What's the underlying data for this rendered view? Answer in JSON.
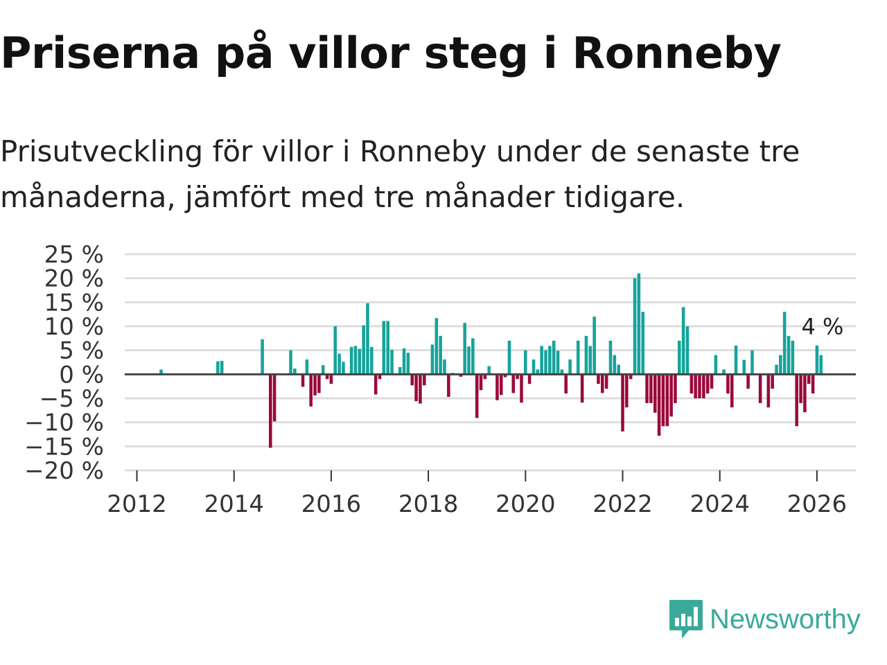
{
  "title": "Priserna på villor steg i Ronneby",
  "subtitle": "Prisutveckling för villor i Ronneby under de senaste tre månaderna, jämfört med tre månader tidigare.",
  "brand": {
    "name": "Newsworthy",
    "color": "#3aa99b",
    "icon": "newsworthy-logo-icon"
  },
  "colors": {
    "positive": "#16a39a",
    "negative": "#9a0a3c",
    "zero_line": "#444444",
    "grid": "#dddddd"
  },
  "chart_data": {
    "type": "bar",
    "title": "Priserna på villor steg i Ronneby",
    "xlabel": "",
    "ylabel": "",
    "ylim": [
      -20,
      25
    ],
    "xlim": [
      2011.75,
      2026.8
    ],
    "y_ticks": [
      25,
      20,
      15,
      10,
      5,
      0,
      -5,
      -10,
      -15,
      -20
    ],
    "y_tick_labels": [
      "25 %",
      "20 %",
      "15 %",
      "10 %",
      "5 %",
      "0 %",
      "−5 %",
      "−10 %",
      "−15 %",
      "−20 %"
    ],
    "x_ticks": [
      2012,
      2014,
      2016,
      2018,
      2020,
      2022,
      2024,
      2026
    ],
    "x_tick_labels": [
      "2012",
      "2014",
      "2016",
      "2018",
      "2020",
      "2022",
      "2024",
      "2026"
    ],
    "grid": true,
    "last_value_label": "4 %",
    "series": [
      {
        "name": "Prisutveckling (%)",
        "x": [
          2012.5,
          2013.667,
          2013.75,
          2014.583,
          2014.75,
          2014.833,
          2015.167,
          2015.25,
          2015.417,
          2015.5,
          2015.583,
          2015.667,
          2015.75,
          2015.833,
          2015.917,
          2016.0,
          2016.083,
          2016.167,
          2016.25,
          2016.417,
          2016.5,
          2016.583,
          2016.667,
          2016.75,
          2016.833,
          2016.917,
          2017.0,
          2017.083,
          2017.167,
          2017.25,
          2017.417,
          2017.5,
          2017.583,
          2017.667,
          2017.75,
          2017.833,
          2017.917,
          2018.083,
          2018.167,
          2018.25,
          2018.333,
          2018.417,
          2018.5,
          2018.667,
          2018.75,
          2018.833,
          2018.917,
          2019.0,
          2019.083,
          2019.167,
          2019.25,
          2019.417,
          2019.5,
          2019.583,
          2019.667,
          2019.75,
          2019.833,
          2019.917,
          2020.0,
          2020.083,
          2020.167,
          2020.25,
          2020.333,
          2020.417,
          2020.5,
          2020.583,
          2020.667,
          2020.75,
          2020.833,
          2020.917,
          2021.083,
          2021.167,
          2021.25,
          2021.333,
          2021.417,
          2021.5,
          2021.583,
          2021.667,
          2021.75,
          2021.833,
          2021.917,
          2022.0,
          2022.083,
          2022.167,
          2022.25,
          2022.333,
          2022.417,
          2022.5,
          2022.583,
          2022.667,
          2022.75,
          2022.833,
          2022.917,
          2023.0,
          2023.083,
          2023.167,
          2023.25,
          2023.333,
          2023.417,
          2023.5,
          2023.583,
          2023.667,
          2023.75,
          2023.833,
          2023.917,
          2024.083,
          2024.167,
          2024.25,
          2024.333,
          2024.5,
          2024.583,
          2024.667,
          2024.833,
          2025.0,
          2025.083,
          2025.167,
          2025.25,
          2025.333,
          2025.417,
          2025.5,
          2025.583,
          2025.667,
          2025.75,
          2025.833,
          2025.917,
          2026.0,
          2026.083
        ],
        "values": [
          1,
          2.7,
          2.8,
          7.3,
          -15.3,
          -9.8,
          5,
          1.2,
          -2.6,
          3.1,
          -6.7,
          -4.4,
          -3.9,
          1.9,
          -1,
          -2,
          10,
          4.3,
          2.6,
          5.7,
          5.9,
          5.3,
          10.2,
          14.8,
          5.7,
          -4.2,
          -1,
          11.1,
          11.1,
          5.1,
          1.5,
          5.4,
          4.5,
          -2.3,
          -5.6,
          -6.1,
          -2.3,
          6.2,
          11.7,
          8,
          3.1,
          -4.7,
          0.3,
          -0.5,
          10.7,
          5.8,
          7.5,
          -9.1,
          -3.3,
          -1,
          1.7,
          -5.4,
          -4.3,
          -0.6,
          7,
          -3.9,
          -1,
          -5.9,
          5,
          -2,
          3.1,
          1,
          5.9,
          5,
          5.9,
          7,
          4.9,
          1,
          -4,
          3.1,
          7,
          -5.9,
          8,
          5.9,
          12,
          -2,
          -3.9,
          -3,
          7,
          4,
          2,
          -11.9,
          -6.9,
          -1,
          20,
          21,
          13,
          -6,
          -6,
          -8,
          -12.8,
          -10.8,
          -10.8,
          -8.8,
          -6,
          7,
          14,
          10,
          -4,
          -5,
          -5,
          -5,
          -4,
          -3,
          4,
          1,
          -4,
          -6.9,
          6,
          3,
          -3,
          5,
          -6,
          -6.9,
          -3,
          2,
          4,
          13,
          8,
          7,
          -10.8,
          -6,
          -7.9,
          -2,
          -4,
          6,
          4
        ]
      }
    ]
  }
}
